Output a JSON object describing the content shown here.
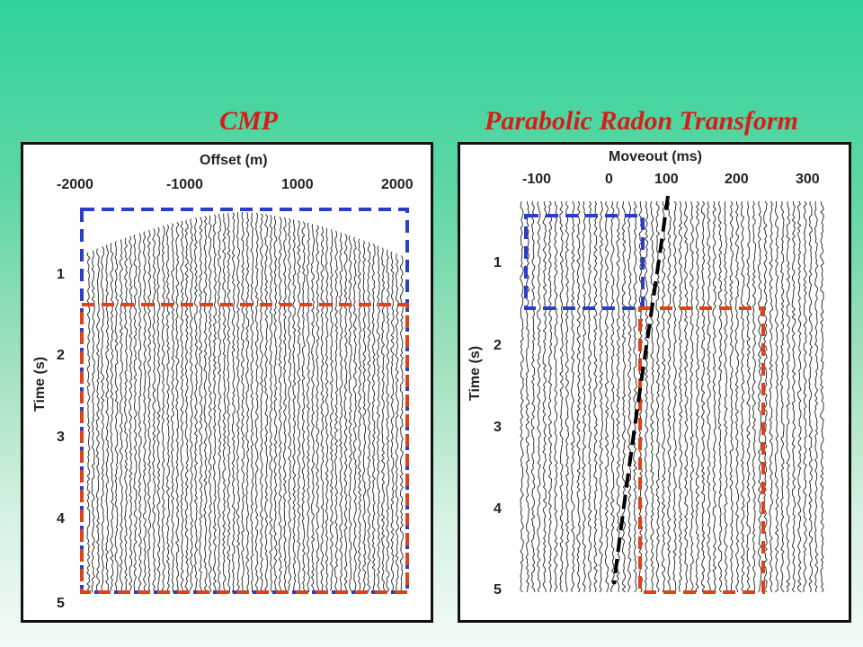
{
  "left": {
    "title": "CMP",
    "x_axis_title": "Offset (m)",
    "x_ticks": [
      "-2000",
      "-1000",
      "1000",
      "2000"
    ],
    "y_axis_title": "Time (s)",
    "y_ticks": [
      "1",
      "2",
      "3",
      "4",
      "5"
    ]
  },
  "right": {
    "title": "Parabolic Radon Transform",
    "x_axis_title": "Moveout (ms)",
    "x_ticks": [
      "-100",
      "0",
      "100",
      "200",
      "300"
    ],
    "y_axis_title": "Time (s)",
    "y_ticks": [
      "1",
      "2",
      "3",
      "4",
      "5"
    ]
  },
  "colors": {
    "title": "#d81c17",
    "blue_box": "#2b3fc6",
    "red_box": "#e0401a",
    "black_curve": "#000000"
  }
}
